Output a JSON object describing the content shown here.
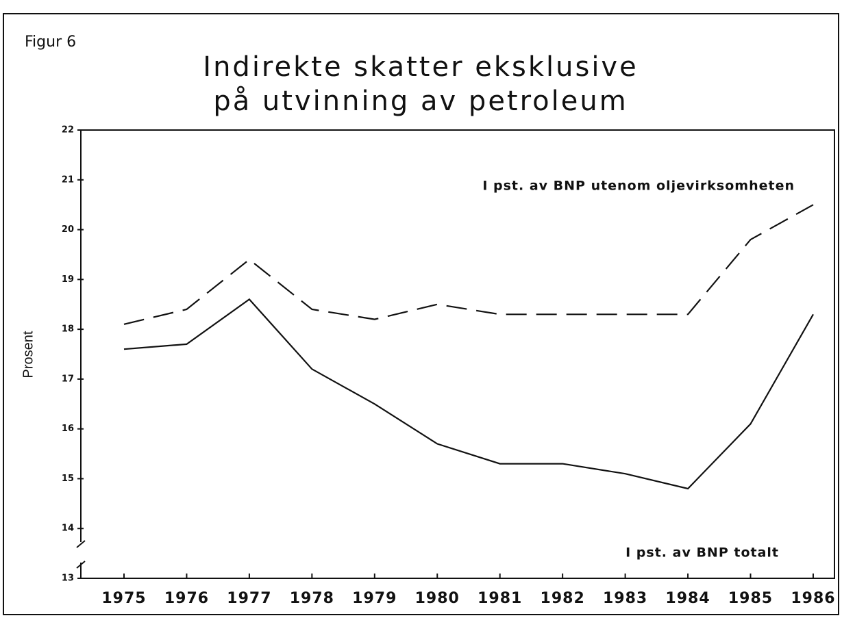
{
  "chart_data": {
    "type": "line",
    "figure_label": "Figur 6",
    "title": [
      "Indirekte skatter eksklusive",
      "på utvinning av petroleum"
    ],
    "ylabel": "Prosent",
    "categories": [
      "1975",
      "1976",
      "1977",
      "1978",
      "1979",
      "1980",
      "1981",
      "1982",
      "1983",
      "1984",
      "1985",
      "1986"
    ],
    "series": [
      {
        "name": "I pst. av BNP utenom oljevirksomheten",
        "color": "#111111",
        "linestyle": "dashed",
        "values": [
          18.1,
          18.4,
          19.4,
          18.4,
          18.2,
          18.5,
          18.3,
          18.3,
          18.3,
          18.3,
          19.8,
          20.5
        ]
      },
      {
        "name": "I pst. av BNP totalt",
        "color": "#111111",
        "linestyle": "solid",
        "values": [
          17.6,
          17.7,
          18.6,
          17.2,
          16.5,
          15.7,
          15.3,
          15.3,
          15.1,
          14.8,
          16.1,
          18.3
        ]
      }
    ],
    "ylim": [
      13,
      22
    ],
    "yticks": [
      13,
      14,
      15,
      16,
      17,
      18,
      19,
      20,
      21,
      22
    ],
    "grid": false
  }
}
